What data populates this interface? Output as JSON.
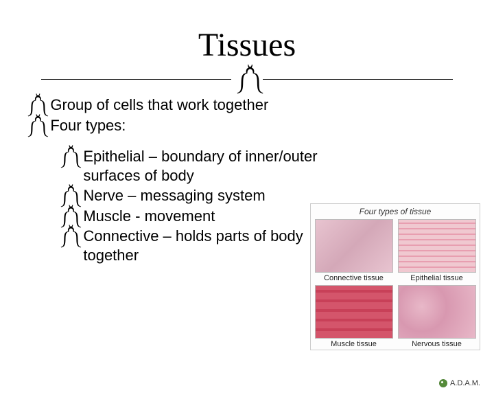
{
  "title": "Tissues",
  "glyph": "་༌",
  "bullets": [
    "Group of cells that work together",
    "Four types:"
  ],
  "sub_bullets": [
    "Epithelial – boundary of inner/outer surfaces of body",
    "Nerve – messaging system",
    "Muscle - movement",
    "Connective – holds parts of body together"
  ],
  "image": {
    "caption": "Four types of tissue",
    "cells": [
      {
        "label": "Connective tissue",
        "class": "connective"
      },
      {
        "label": "Epithelial tissue",
        "class": "epithelial"
      },
      {
        "label": "Muscle tissue",
        "class": "muscle"
      },
      {
        "label": "Nervous tissue",
        "class": "nervous"
      }
    ],
    "credit": "A.D.A.M."
  },
  "colors": {
    "background": "#ffffff",
    "text": "#000000",
    "divider": "#000000"
  },
  "typography": {
    "title_fontsize": 48,
    "body_fontsize": 22,
    "bullet_glyph": "་༌"
  }
}
